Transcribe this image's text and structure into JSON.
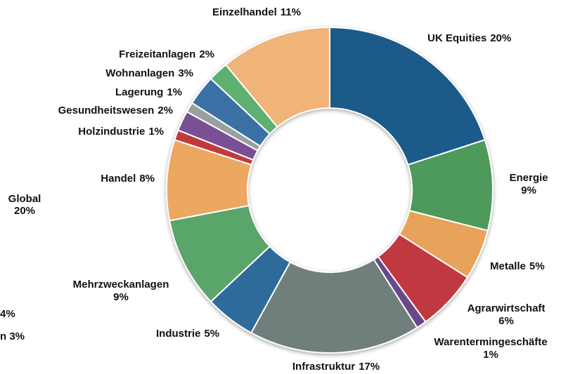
{
  "chart_data": {
    "type": "donut",
    "categories": [
      "UK Equities",
      "Energie",
      "Metalle",
      "Agrarwirtschaft",
      "Warentermingeschäfte",
      "Infrastruktur",
      "Industrie",
      "Mehrzweckanlagen",
      "Handel",
      "Holzindustrie",
      "Gesundheitswesen",
      "Lagerung",
      "Wohnanlagen",
      "Freizeitanlagen",
      "Einzelhandel"
    ],
    "values": [
      20,
      9,
      5,
      6,
      1,
      17,
      5,
      9,
      8,
      1,
      2,
      1,
      3,
      2,
      11
    ],
    "value_labels": [
      "20%",
      "9%",
      "5%",
      "6%",
      "1%",
      "17%",
      "5%",
      "9%",
      "8%",
      "1%",
      "2%",
      "1%",
      "3%",
      "2%",
      "11%"
    ],
    "colors": [
      "#1f5a8a",
      "#4e9a5a",
      "#e8a25a",
      "#c0393f",
      "#6a4a8a",
      "#6f7f7b",
      "#2f6a9a",
      "#5aa56a",
      "#eca860",
      "#c03a3a",
      "#7a4f94",
      "#9aa0a0",
      "#3a6fa5",
      "#5fb070",
      "#f0b478"
    ],
    "cropped_labels": [
      "Global",
      "20%",
      "4%",
      "n 3%"
    ]
  }
}
